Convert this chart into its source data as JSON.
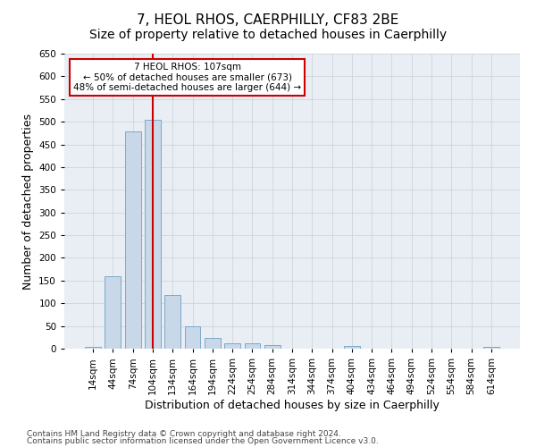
{
  "title": "7, HEOL RHOS, CAERPHILLY, CF83 2BE",
  "subtitle": "Size of property relative to detached houses in Caerphilly",
  "xlabel": "Distribution of detached houses by size in Caerphilly",
  "ylabel": "Number of detached properties",
  "categories": [
    "14sqm",
    "44sqm",
    "74sqm",
    "104sqm",
    "134sqm",
    "164sqm",
    "194sqm",
    "224sqm",
    "254sqm",
    "284sqm",
    "314sqm",
    "344sqm",
    "374sqm",
    "404sqm",
    "434sqm",
    "464sqm",
    "494sqm",
    "524sqm",
    "554sqm",
    "584sqm",
    "614sqm"
  ],
  "values": [
    3,
    160,
    478,
    505,
    118,
    49,
    23,
    12,
    11,
    8,
    0,
    0,
    0,
    5,
    0,
    0,
    0,
    0,
    0,
    0,
    4
  ],
  "bar_color": "#c8d8e8",
  "bar_edge_color": "#7aaac8",
  "vline_bin_index": 3,
  "vline_color": "#cc0000",
  "annotation_box_text": "7 HEOL RHOS: 107sqm\n← 50% of detached houses are smaller (673)\n48% of semi-detached houses are larger (644) →",
  "annotation_box_color": "#ffffff",
  "annotation_box_edge_color": "#cc0000",
  "ylim": [
    0,
    650
  ],
  "yticks": [
    0,
    50,
    100,
    150,
    200,
    250,
    300,
    350,
    400,
    450,
    500,
    550,
    600,
    650
  ],
  "background_color": "#ffffff",
  "plot_bg_color": "#e8eef4",
  "grid_color": "#c8d0d8",
  "title_fontsize": 11,
  "subtitle_fontsize": 10,
  "axis_label_fontsize": 9,
  "tick_fontsize": 7.5,
  "footnote1": "Contains HM Land Registry data © Crown copyright and database right 2024.",
  "footnote2": "Contains public sector information licensed under the Open Government Licence v3.0.",
  "footnote_fontsize": 6.5
}
